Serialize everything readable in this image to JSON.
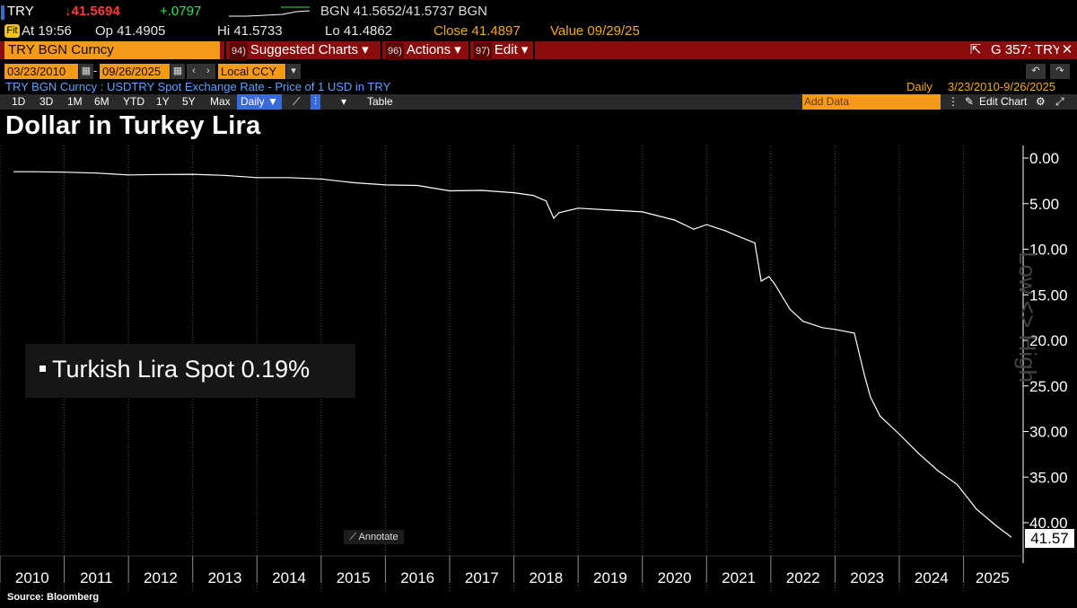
{
  "quote": {
    "ticker": "TRY",
    "last": "↓41.5694",
    "change": "+.0797",
    "bid_ask": "BGN 41.5652/41.5737 BGN",
    "at": "At 19:56",
    "open": "Op 41.4905",
    "high": "Hi 41.5733",
    "low": "Lo 41.4862",
    "close": "Close 41.4897",
    "value": "Value 09/29/25"
  },
  "menubar": {
    "security": "TRY BGN Curncy",
    "suggested_num": "94)",
    "suggested": "Suggested Charts ▾",
    "actions_num": "96)",
    "actions": "Actions ▾",
    "edit_num": "97)",
    "edit": "Edit ▾",
    "page_id": "G 357: TRY"
  },
  "range": {
    "start": "03/23/2010",
    "end": "09/26/2025",
    "currency": "Local CCY"
  },
  "info": {
    "description": "TRY BGN Curncy : USDTRY Spot Exchange Rate - Price of 1 USD in TRY",
    "period": "Daily",
    "dates": "3/23/2010-9/26/2025"
  },
  "toolbar": {
    "periods": [
      "1D",
      "3D",
      "1M",
      "6M",
      "YTD",
      "1Y",
      "5Y",
      "Max"
    ],
    "frequency": "Daily ▼",
    "table": "Table",
    "add_data": "Add Data",
    "edit_chart": "Edit Chart"
  },
  "title": "Dollar in Turkey Lira",
  "legend": "Turkish Lira Spot  0.19%",
  "annotate": "Annotate",
  "last_value": "41.57",
  "side_text": "Low <> High",
  "source": "Source: Bloomberg",
  "chart_data": {
    "type": "line",
    "title": "Dollar in Turkey Lira",
    "series": [
      {
        "name": "Turkish Lira Spot",
        "x": [
          2010.22,
          2010.5,
          2011.0,
          2011.5,
          2012.0,
          2012.5,
          2013.0,
          2013.5,
          2014.0,
          2014.5,
          2015.0,
          2015.5,
          2016.0,
          2016.5,
          2017.0,
          2017.5,
          2018.0,
          2018.3,
          2018.5,
          2018.62,
          2018.7,
          2019.0,
          2019.5,
          2020.0,
          2020.5,
          2020.8,
          2021.0,
          2021.3,
          2021.5,
          2021.75,
          2021.85,
          2021.97,
          2022.05,
          2022.3,
          2022.5,
          2022.8,
          2023.0,
          2023.3,
          2023.45,
          2023.55,
          2023.7,
          2024.0,
          2024.3,
          2024.6,
          2024.9,
          2025.2,
          2025.5,
          2025.74
        ],
        "values": [
          1.5,
          1.5,
          1.55,
          1.65,
          1.85,
          1.8,
          1.78,
          1.9,
          2.15,
          2.15,
          2.3,
          2.7,
          2.95,
          3.0,
          3.6,
          3.55,
          3.8,
          4.1,
          4.7,
          6.6,
          6.0,
          5.5,
          5.7,
          5.9,
          6.8,
          7.8,
          7.3,
          8.0,
          8.6,
          9.3,
          13.5,
          13.0,
          13.7,
          16.6,
          17.9,
          18.6,
          18.8,
          19.2,
          23.6,
          26.2,
          28.3,
          30.3,
          32.4,
          34.3,
          35.8,
          38.5,
          40.3,
          41.57
        ]
      }
    ],
    "x_ticks": [
      "2010",
      "2011",
      "2012",
      "2013",
      "2014",
      "2015",
      "2016",
      "2017",
      "2018",
      "2019",
      "2020",
      "2021",
      "2022",
      "2023",
      "2024",
      "2025"
    ],
    "y_ticks": [
      "0.00",
      "5.00",
      "10.00",
      "15.00",
      "20.00",
      "25.00",
      "30.00",
      "35.00",
      "40.00"
    ],
    "ylim": [
      0,
      41.5
    ],
    "y_axis": "inverted, right side",
    "grid": "vertical lines at year boundaries",
    "line_color": "#ffffff",
    "background": "#000000"
  }
}
